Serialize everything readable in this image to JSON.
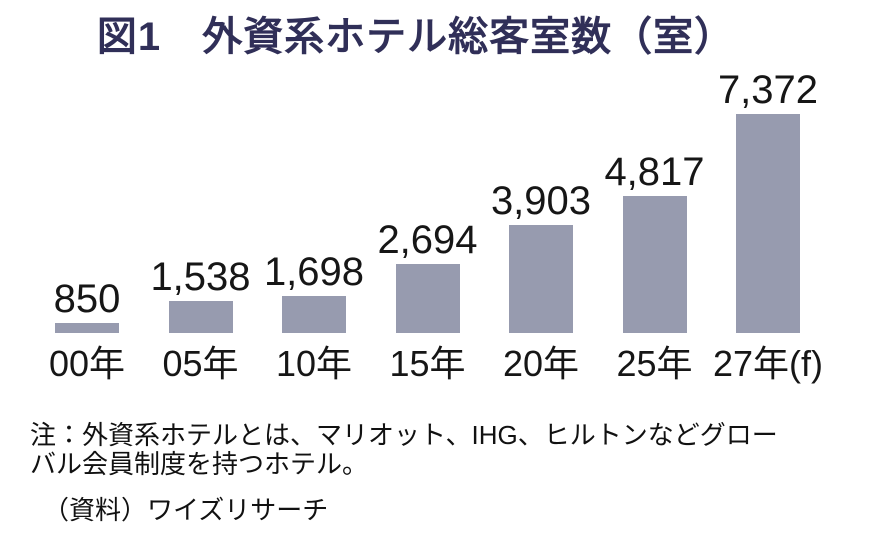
{
  "chart_data": {
    "type": "bar",
    "title": "図1　外資系ホテル総客室数（室）",
    "categories": [
      "00年",
      "05年",
      "10年",
      "15年",
      "20年",
      "25年",
      "27年(f)"
    ],
    "values": [
      850,
      1538,
      1698,
      2694,
      3903,
      4817,
      7372
    ],
    "value_labels": [
      "850",
      "1,538",
      "1,698",
      "2,694",
      "3,903",
      "4,817",
      "7,372"
    ],
    "unit": "室",
    "xlabel": "",
    "ylabel": "",
    "ylim": [
      0,
      7800
    ],
    "grid": false,
    "legend": false,
    "value_labels_position": "above-bars",
    "bar_color": "#979BAF",
    "title_color": "#302F58",
    "label_color": "#161616"
  },
  "note": {
    "lines": [
      "注：外資系ホテルとは、マリオット、IHG、ヒルトンなどグロー",
      "バル会員制度を持つホテル。"
    ],
    "full_text": "注：外資系ホテルとは、マリオット、IHG、ヒルトンなどグローバル会員制度を持つホテル。"
  },
  "source": "（資料）ワイズリサーチ"
}
